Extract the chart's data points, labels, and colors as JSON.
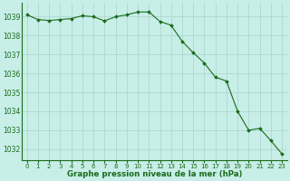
{
  "x": [
    0,
    1,
    2,
    3,
    4,
    5,
    6,
    7,
    8,
    9,
    10,
    11,
    12,
    13,
    14,
    15,
    16,
    17,
    18,
    19,
    20,
    21,
    22,
    23
  ],
  "y": [
    1039.1,
    1038.85,
    1038.8,
    1038.85,
    1038.9,
    1039.05,
    1039.0,
    1038.78,
    1039.0,
    1039.1,
    1039.25,
    1039.25,
    1038.75,
    1038.55,
    1037.7,
    1037.1,
    1036.55,
    1035.8,
    1035.6,
    1034.0,
    1033.0,
    1033.1,
    1032.45,
    1031.75
  ],
  "line_color": "#1a6b1a",
  "marker_color": "#1a6b1a",
  "bg_color": "#c8eee8",
  "grid_color": "#a8d4cc",
  "title": "Graphe pression niveau de la mer (hPa)",
  "title_color": "#1a6b1a",
  "ylim_min": 1031.4,
  "ylim_max": 1039.75,
  "ytick_min": 1032,
  "ytick_max": 1039,
  "tick_color": "#1a6b1a",
  "border_color": "#1a6b1a",
  "ytick_fontsize": 5.5,
  "xtick_fontsize": 5.0,
  "title_fontsize": 6.2
}
